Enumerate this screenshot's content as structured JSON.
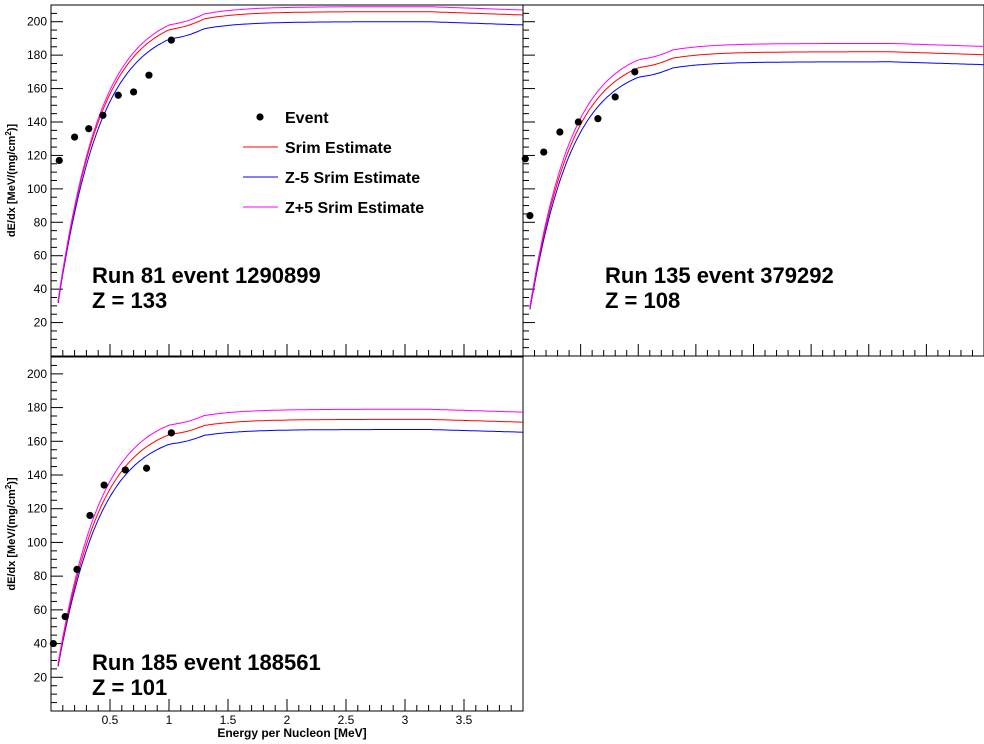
{
  "legend": {
    "entries": [
      {
        "label": "Event",
        "kind": "marker",
        "color": "#000000"
      },
      {
        "label": "Srim Estimate",
        "kind": "line",
        "color": "#ff0000"
      },
      {
        "label": "Z-5 Srim Estimate",
        "kind": "line",
        "color": "#0000ff"
      },
      {
        "label": "Z+5 Srim Estimate",
        "kind": "line",
        "color": "#ff00ff"
      }
    ]
  },
  "chart_data": [
    {
      "type": "scatter",
      "panel": "top-left",
      "xlabel": "",
      "ylabel": "dE/dx [MeV/(mg/cm",
      "ylabel_sup": "2",
      "ylabel_end": ")]",
      "xlim": [
        0,
        4.0
      ],
      "ylim": [
        0,
        210
      ],
      "yticks": [
        20,
        40,
        60,
        80,
        100,
        120,
        140,
        160,
        180,
        200
      ],
      "xticks": [],
      "annotation": [
        "Run 81 event 1290899",
        "Z = 133"
      ],
      "legend_position": "center",
      "events": {
        "x": [
          0.07,
          0.2,
          0.32,
          0.44,
          0.57,
          0.7,
          0.83,
          1.02
        ],
        "y": [
          117,
          131,
          136,
          144,
          156,
          158,
          168,
          189
        ]
      },
      "srim_plateau": {
        "srim": 206,
        "zminus": 200,
        "zplus": 209
      }
    },
    {
      "type": "scatter",
      "panel": "top-right",
      "xlabel": "",
      "ylabel": "",
      "xlim": [
        0,
        4.0
      ],
      "ylim": [
        0,
        210
      ],
      "yticks": [],
      "xticks": [],
      "annotation": [
        "Run 135 event 379292",
        "Z = 108"
      ],
      "events": {
        "x": [
          0.02,
          0.06,
          0.18,
          0.32,
          0.48,
          0.65,
          0.8,
          0.97
        ],
        "y": [
          118,
          84,
          122,
          134,
          140,
          142,
          155,
          170
        ]
      },
      "srim_plateau": {
        "srim": 182,
        "zminus": 176,
        "zplus": 187
      }
    },
    {
      "type": "scatter",
      "panel": "bottom-left",
      "xlabel": "Energy per Nucleon [MeV]",
      "ylabel": "dE/dx [MeV/(mg/cm",
      "ylabel_sup": "2",
      "ylabel_end": ")]",
      "xlim": [
        0,
        4.0
      ],
      "ylim": [
        0,
        210
      ],
      "yticks": [
        20,
        40,
        60,
        80,
        100,
        120,
        140,
        160,
        180,
        200
      ],
      "xticks": [
        0.5,
        1,
        1.5,
        2,
        2.5,
        3,
        3.5
      ],
      "xtick_labels": [
        "0.5",
        "1",
        "1.5",
        "2",
        "2.5",
        "3",
        "3.5"
      ],
      "annotation": [
        "Run 185 event 188561",
        "Z = 101"
      ],
      "events": {
        "x": [
          0.02,
          0.12,
          0.22,
          0.33,
          0.45,
          0.63,
          0.81,
          1.02
        ],
        "y": [
          40,
          56,
          84,
          116,
          134,
          143,
          144,
          165
        ]
      },
      "srim_plateau": {
        "srim": 173,
        "zminus": 167,
        "zplus": 179
      }
    }
  ]
}
